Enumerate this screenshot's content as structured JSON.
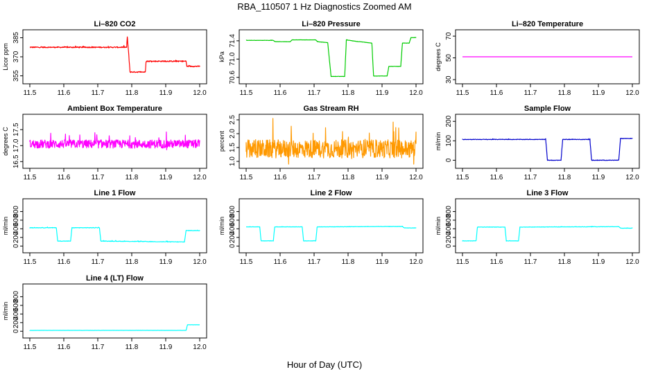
{
  "page": {
    "title": "RBA_110507  1 Hz Diagnostics Zoomed AM",
    "xlabel": "Hour of Day (UTC)"
  },
  "chart_data": [
    {
      "id": "co2",
      "type": "line",
      "title": "Li–820 CO2",
      "ylabel": "Licor ppm",
      "color": "#ff0000",
      "ylim": [
        352,
        388
      ],
      "yticks": [
        355,
        370,
        385
      ],
      "xlim": [
        11.5,
        12.0
      ],
      "xticks": [
        11.5,
        11.6,
        11.7,
        11.8,
        11.9,
        12.0
      ],
      "noise": 0.7,
      "series": [
        {
          "name": "CO2",
          "x": [
            11.5,
            11.785,
            11.787,
            11.795,
            11.84,
            11.842,
            11.96,
            11.962,
            12.0
          ],
          "y": [
            377.5,
            377.5,
            386,
            358,
            358,
            366.5,
            366.5,
            362.5,
            362.5
          ]
        }
      ]
    },
    {
      "id": "pressure",
      "type": "line",
      "title": "Li–820 Pressure",
      "ylabel": "kPa",
      "color": "#00cc00",
      "ylim": [
        70.55,
        71.55
      ],
      "yticks": [
        70.6,
        71.0,
        71.4
      ],
      "xlim": [
        11.5,
        12.0
      ],
      "xticks": [
        11.5,
        11.6,
        11.7,
        11.8,
        11.9,
        12.0
      ],
      "noise": 0.004,
      "series": [
        {
          "name": "Pressure",
          "x": [
            11.5,
            11.58,
            11.585,
            11.63,
            11.635,
            11.705,
            11.71,
            11.74,
            11.75,
            11.79,
            11.795,
            11.83,
            11.835,
            11.87,
            11.875,
            11.915,
            11.92,
            11.955,
            11.96,
            11.98,
            11.985,
            12.0
          ],
          "y": [
            71.41,
            71.41,
            71.38,
            71.38,
            71.42,
            71.42,
            71.38,
            71.36,
            70.62,
            70.62,
            71.42,
            71.38,
            71.38,
            71.35,
            70.63,
            70.63,
            70.84,
            70.84,
            71.35,
            71.35,
            71.47,
            71.47
          ]
        }
      ]
    },
    {
      "id": "temperature",
      "type": "line",
      "title": "Li–820 Temperature",
      "ylabel": "degrees C",
      "color": "#ff00ff",
      "ylim": [
        30,
        72
      ],
      "yticks": [
        30,
        50,
        70
      ],
      "xlim": [
        11.5,
        12.0
      ],
      "xticks": [
        11.5,
        11.6,
        11.7,
        11.8,
        11.9,
        12.0
      ],
      "noise": 0,
      "series": [
        {
          "name": "Temperature",
          "x": [
            11.5,
            12.0
          ],
          "y": [
            51.0,
            51.0
          ]
        }
      ]
    },
    {
      "id": "ambient",
      "type": "line",
      "title": "Ambient Box Temperature",
      "ylabel": "degrees C",
      "color": "#ff00ff",
      "ylim": [
        16.42,
        17.85
      ],
      "yticks": [
        16.5,
        17.0,
        17.5
      ],
      "xlim": [
        11.5,
        12.0
      ],
      "xticks": [
        11.5,
        11.6,
        11.7,
        11.8,
        11.9,
        12.0
      ],
      "noise": 0.22,
      "series": [
        {
          "name": "Ambient",
          "x": [
            11.5,
            12.0
          ],
          "y": [
            17.05,
            17.05
          ]
        }
      ]
    },
    {
      "id": "rh",
      "type": "line",
      "title": "Gas Stream RH",
      "ylabel": "percent",
      "color": "#ff9900",
      "ylim": [
        0.9,
        2.55
      ],
      "yticks": [
        1.0,
        1.5,
        2.0,
        2.5
      ],
      "xlim": [
        11.5,
        12.0
      ],
      "xticks": [
        11.5,
        11.6,
        11.7,
        11.8,
        11.9,
        12.0
      ],
      "noise": 0.55,
      "series": [
        {
          "name": "RH",
          "x": [
            11.5,
            12.0
          ],
          "y": [
            1.45,
            1.45
          ]
        }
      ]
    },
    {
      "id": "sample",
      "type": "line",
      "title": "Sample Flow",
      "ylabel": "ml/min",
      "color": "#0000cc",
      "ylim": [
        -20,
        215
      ],
      "yticks": [
        0,
        100,
        200
      ],
      "xlim": [
        11.5,
        12.0
      ],
      "xticks": [
        11.5,
        11.6,
        11.7,
        11.8,
        11.9,
        12.0
      ],
      "noise": 2,
      "series": [
        {
          "name": "Sample",
          "x": [
            11.5,
            11.745,
            11.75,
            11.79,
            11.795,
            11.875,
            11.88,
            11.96,
            11.965,
            12.0
          ],
          "y": [
            107,
            107,
            0,
            0,
            107,
            107,
            0,
            0,
            112,
            112
          ]
        }
      ]
    },
    {
      "id": "line1",
      "type": "line",
      "title": "Line 1 Flow",
      "ylabel": "ml/min",
      "color": "#00ffff",
      "ylim": [
        -60,
        1000
      ],
      "yticks": [
        0,
        200,
        400,
        600,
        800
      ],
      "xlim": [
        11.5,
        12.0
      ],
      "xticks": [
        11.5,
        11.6,
        11.7,
        11.8,
        11.9,
        12.0
      ],
      "noise": 10,
      "series": [
        {
          "name": "Line 1",
          "x": [
            11.5,
            11.578,
            11.582,
            11.62,
            11.624,
            11.705,
            11.709,
            11.955,
            11.96,
            12.0
          ],
          "y": [
            425,
            425,
            115,
            115,
            425,
            425,
            115,
            95,
            360,
            360
          ]
        }
      ]
    },
    {
      "id": "line2",
      "type": "line",
      "title": "Line 2 Flow",
      "ylabel": "ml/min",
      "color": "#00ffff",
      "ylim": [
        -60,
        1000
      ],
      "yticks": [
        0,
        200,
        400,
        600,
        800
      ],
      "xlim": [
        11.5,
        12.0
      ],
      "xticks": [
        11.5,
        11.6,
        11.7,
        11.8,
        11.9,
        12.0
      ],
      "noise": 6,
      "series": [
        {
          "name": "Line 2",
          "x": [
            11.5,
            11.54,
            11.544,
            11.58,
            11.584,
            11.665,
            11.669,
            11.705,
            11.709,
            11.96,
            11.965,
            12.0
          ],
          "y": [
            445,
            445,
            120,
            120,
            445,
            445,
            120,
            120,
            445,
            455,
            420,
            420
          ]
        }
      ]
    },
    {
      "id": "line3",
      "type": "line",
      "title": "Line 3 Flow",
      "ylabel": "ml/min",
      "color": "#00ffff",
      "ylim": [
        -60,
        1000
      ],
      "yticks": [
        0,
        200,
        400,
        600,
        800
      ],
      "xlim": [
        11.5,
        12.0
      ],
      "xticks": [
        11.5,
        11.6,
        11.7,
        11.8,
        11.9,
        12.0
      ],
      "noise": 6,
      "series": [
        {
          "name": "Line 3",
          "x": [
            11.5,
            11.54,
            11.544,
            11.625,
            11.629,
            11.665,
            11.669,
            11.96,
            11.965,
            12.0
          ],
          "y": [
            120,
            120,
            440,
            440,
            120,
            120,
            440,
            450,
            415,
            415
          ]
        }
      ]
    },
    {
      "id": "line4",
      "type": "line",
      "title": "Line 4 (LT) Flow",
      "ylabel": "ml/min",
      "color": "#00ffff",
      "ylim": [
        -60,
        1000
      ],
      "yticks": [
        0,
        200,
        400,
        600,
        800
      ],
      "xlim": [
        11.5,
        12.0
      ],
      "xticks": [
        11.5,
        11.6,
        11.7,
        11.8,
        11.9,
        12.0
      ],
      "noise": 2,
      "series": [
        {
          "name": "Line 4",
          "x": [
            11.5,
            11.96,
            11.964,
            12.0
          ],
          "y": [
            20,
            20,
            150,
            150
          ]
        }
      ]
    }
  ]
}
